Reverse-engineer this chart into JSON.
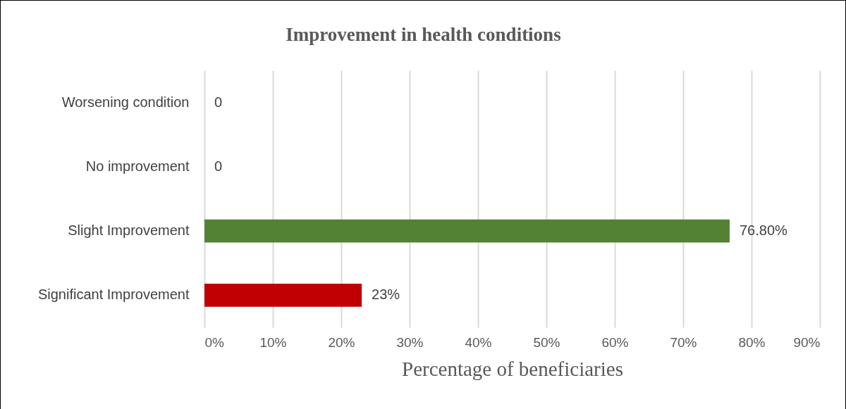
{
  "chart_data": {
    "type": "bar",
    "orientation": "horizontal",
    "title": "Improvement in health conditions",
    "xlabel": "Percentage of beneficiaries",
    "categories": [
      "Worsening condition",
      "No improvement",
      "Slight Improvement",
      "Significant Improvement"
    ],
    "values": [
      0,
      0,
      76.8,
      23
    ],
    "colors": [
      "#548235",
      "#548235",
      "#548235",
      "#c00000"
    ],
    "value_labels": [
      "0",
      "0",
      "76.80%",
      "23%"
    ],
    "xlim": [
      0,
      90
    ],
    "xticks": [
      {
        "value": 0,
        "label": "0%"
      },
      {
        "value": 10,
        "label": "10%"
      },
      {
        "value": 20,
        "label": "20%"
      },
      {
        "value": 30,
        "label": "30%"
      },
      {
        "value": 40,
        "label": "40%"
      },
      {
        "value": 50,
        "label": "50%"
      },
      {
        "value": 60,
        "label": "60%"
      },
      {
        "value": 70,
        "label": "70%"
      },
      {
        "value": 80,
        "label": "80%"
      },
      {
        "value": 90,
        "label": "90%"
      }
    ],
    "grid": "x"
  }
}
